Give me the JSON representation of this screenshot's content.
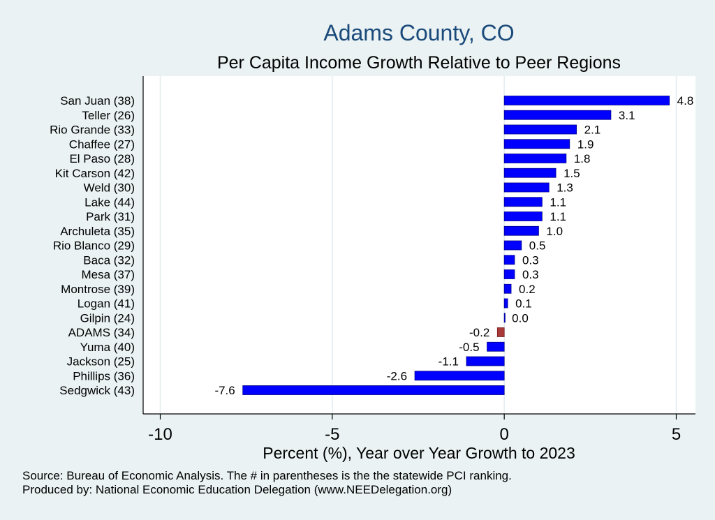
{
  "chart_data": {
    "type": "bar",
    "orientation": "horizontal",
    "title": "Adams County, CO",
    "subtitle": "Per Capita Income Growth Relative to Peer Regions",
    "xlabel": "Percent (%), Year over Year Growth to 2023",
    "ylabel": "",
    "xlim": [
      -10,
      5
    ],
    "xticks": [
      -10,
      -5,
      0,
      5
    ],
    "grid": true,
    "categories": [
      "San Juan (38)",
      "Teller (26)",
      "Rio Grande (33)",
      "Chaffee (27)",
      "El Paso (28)",
      "Kit Carson (42)",
      "Weld (30)",
      "Lake (44)",
      "Park (31)",
      "Archuleta (35)",
      "Rio Blanco (29)",
      "Baca (32)",
      "Mesa (37)",
      "Montrose (39)",
      "Logan (41)",
      "Gilpin (24)",
      "ADAMS (34)",
      "Yuma (40)",
      "Jackson (25)",
      "Phillips (36)",
      "Sedgwick (43)"
    ],
    "values": [
      4.8,
      3.1,
      2.1,
      1.9,
      1.8,
      1.5,
      1.3,
      1.1,
      1.1,
      1.0,
      0.5,
      0.3,
      0.3,
      0.2,
      0.1,
      0.0,
      -0.2,
      -0.5,
      -1.1,
      -2.6,
      -7.6
    ],
    "value_labels": [
      "4.8",
      "3.1",
      "2.1",
      "1.9",
      "1.8",
      "1.5",
      "1.3",
      "1.1",
      "1.1",
      "1.0",
      "0.5",
      "0.3",
      "0.3",
      "0.2",
      "0.1",
      "0.0",
      "-0.2",
      "-0.5",
      "-1.1",
      "-2.6",
      "-7.6"
    ],
    "highlight": "ADAMS (34)",
    "colors": {
      "bar": "#0000ff",
      "highlight": "#a83a3a",
      "background": "#eaf2f3",
      "plot_background": "#ffffff",
      "grid": "#e2ecef",
      "text": "#000000",
      "title": "#1a4a7a"
    }
  },
  "footer": {
    "source": "Source: Bureau of Economic Analysis. The # in parentheses is the the statewide PCI ranking.",
    "produced_by": "Produced by: National Economic Education Delegation (www.NEEDelegation.org)"
  }
}
